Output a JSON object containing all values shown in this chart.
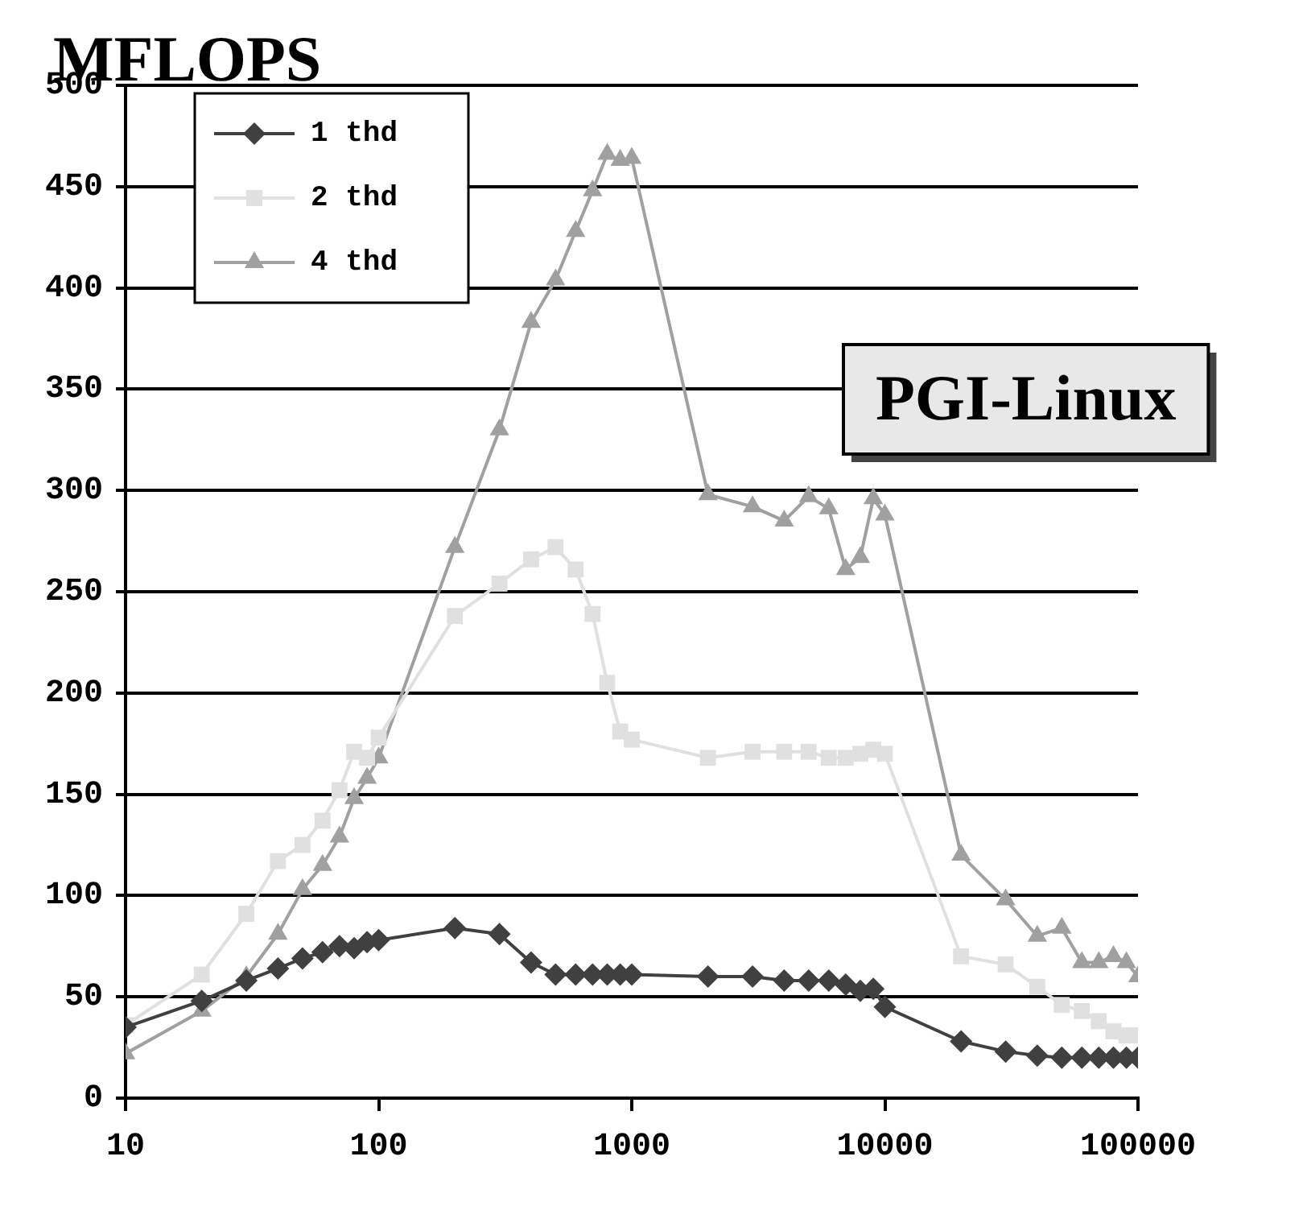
{
  "chart_data": {
    "type": "line",
    "ylabel": "MFLOPS",
    "annotations": [
      "PGI-Linux"
    ],
    "log": "x",
    "x": [
      10,
      20,
      30,
      40,
      50,
      60,
      70,
      80,
      90,
      100,
      200,
      300,
      400,
      500,
      600,
      700,
      800,
      900,
      1000,
      2000,
      3000,
      4000,
      5000,
      6000,
      7000,
      8000,
      9000,
      10000,
      20000,
      30000,
      40000,
      50000,
      60000,
      70000,
      80000,
      90000,
      100000
    ],
    "xlim": [
      10,
      100000
    ],
    "xticks": [
      10,
      100,
      1000,
      10000,
      100000
    ],
    "ylim": [
      0,
      500
    ],
    "yticks": [
      0,
      50,
      100,
      150,
      200,
      250,
      300,
      350,
      400,
      450,
      500
    ],
    "grid": "y",
    "legend": "top left",
    "line_style": "solid",
    "series": [
      {
        "name": "1 thd",
        "color": "#404040",
        "marker": "diamond",
        "values": [
          35,
          48,
          58,
          64,
          69,
          72,
          75,
          74,
          77,
          78,
          84,
          81,
          67,
          61,
          61,
          61,
          61,
          61,
          61,
          60,
          60,
          58,
          58,
          58,
          56,
          53,
          54,
          45,
          28,
          23,
          21,
          20,
          20,
          20,
          20,
          20,
          20
        ]
      },
      {
        "name": "2 thd",
        "color": "#e0e0e0",
        "marker": "square",
        "values": [
          36,
          61,
          91,
          117,
          125,
          137,
          152,
          171,
          168,
          178,
          238,
          254,
          266,
          272,
          261,
          239,
          205,
          181,
          177,
          168,
          171,
          171,
          171,
          168,
          168,
          170,
          172,
          170,
          70,
          66,
          55,
          46,
          43,
          38,
          33,
          31,
          31
        ]
      },
      {
        "name": "4 thd",
        "color": "#a0a0a0",
        "marker": "triangle",
        "values": [
          22,
          43,
          60,
          81,
          103,
          115,
          129,
          148,
          158,
          168,
          272,
          330,
          383,
          404,
          428,
          448,
          466,
          463,
          464,
          298,
          292,
          285,
          297,
          291,
          261,
          267,
          296,
          288,
          120,
          98,
          80,
          84,
          67,
          67,
          70,
          67,
          60
        ]
      }
    ]
  }
}
